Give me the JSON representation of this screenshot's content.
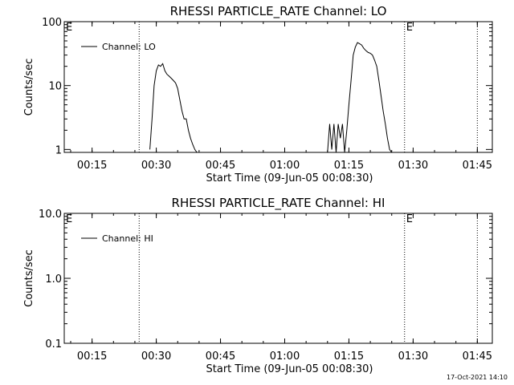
{
  "footer": {
    "timestamp": "17-Oct-2021 14:10"
  },
  "chart_data": [
    {
      "type": "line",
      "title": "RHESSI PARTICLE_RATE Channel: LO",
      "xlabel": "Start Time (09-Jun-05 00:08:30)",
      "ylabel": "Counts/sec",
      "y_scale": "log",
      "ylim": [
        0.9,
        100
      ],
      "xlim_minutes_from_start": [
        0,
        100
      ],
      "x_tick_labels": [
        "00:15",
        "00:30",
        "00:45",
        "01:00",
        "01:15",
        "01:30",
        "01:45"
      ],
      "y_tick_labels": [
        "1",
        "10",
        "100"
      ],
      "y_tick_values": [
        1,
        10,
        100
      ],
      "eclipse_marker": "E",
      "eclipse_times": [
        "00:08:30",
        "01:28:00"
      ],
      "dotted_lines": [
        "00:26:00",
        "01:28:00",
        "01:45:00"
      ],
      "legend": {
        "placement": "top-left",
        "entries": [
          "Channel: LO"
        ]
      },
      "series": [
        {
          "name": "Channel: LO",
          "color": "#000000",
          "x": [
            "00:28:30",
            "00:29:00",
            "00:29:30",
            "00:30:00",
            "00:30:30",
            "00:31:00",
            "00:31:30",
            "00:32:00",
            "00:32:30",
            "00:33:00",
            "00:33:30",
            "00:34:00",
            "00:34:30",
            "00:35:00",
            "00:35:30",
            "00:36:00",
            "00:36:30",
            "00:37:00",
            "00:37:30",
            "00:38:00",
            "00:38:30",
            "00:39:00",
            "00:39:30",
            "01:10:00",
            "01:10:30",
            "01:11:00",
            "01:11:30",
            "01:12:00",
            "01:12:30",
            "01:13:00",
            "01:13:30",
            "01:14:00",
            "01:14:30",
            "01:15:00",
            "01:15:30",
            "01:16:00",
            "01:16:30",
            "01:17:00",
            "01:17:30",
            "01:18:00",
            "01:18:30",
            "01:19:00",
            "01:19:30",
            "01:20:00",
            "01:20:30",
            "01:21:00",
            "01:21:30",
            "01:22:00",
            "01:22:30",
            "01:23:00",
            "01:23:30",
            "01:24:00",
            "01:24:30",
            "01:25:00",
            "01:25:30"
          ],
          "y": [
            1,
            3,
            10,
            17,
            21,
            20,
            22,
            17,
            15,
            14,
            13,
            12,
            11,
            9,
            6,
            4,
            3,
            3,
            2,
            1.5,
            1.2,
            1,
            0.9,
            0.9,
            2.5,
            1.0,
            2.5,
            0.9,
            2.5,
            1.5,
            2.5,
            0.9,
            2,
            5,
            12,
            30,
            40,
            47,
            45,
            43,
            38,
            35,
            33,
            32,
            30,
            25,
            20,
            12,
            7,
            4,
            2.5,
            1.5,
            1,
            0.9,
            0.9
          ]
        }
      ]
    },
    {
      "type": "line",
      "title": "RHESSI PARTICLE_RATE Channel: HI",
      "xlabel": "Start Time (09-Jun-05 00:08:30)",
      "ylabel": "Counts/sec",
      "y_scale": "log",
      "ylim": [
        0.1,
        10
      ],
      "xlim_minutes_from_start": [
        0,
        100
      ],
      "x_tick_labels": [
        "00:15",
        "00:30",
        "00:45",
        "01:00",
        "01:15",
        "01:30",
        "01:45"
      ],
      "y_tick_labels": [
        "0.1",
        "1.0",
        "10.0"
      ],
      "y_tick_values": [
        0.1,
        1,
        10
      ],
      "eclipse_marker": "E",
      "eclipse_times": [
        "00:08:30",
        "01:28:00"
      ],
      "dotted_lines": [
        "00:26:00",
        "01:28:00",
        "01:45:00"
      ],
      "legend": {
        "placement": "top-left",
        "entries": [
          "Channel: HI"
        ]
      },
      "series": [
        {
          "name": "Channel: HI",
          "color": "#000000",
          "x": [],
          "y": []
        }
      ]
    }
  ]
}
